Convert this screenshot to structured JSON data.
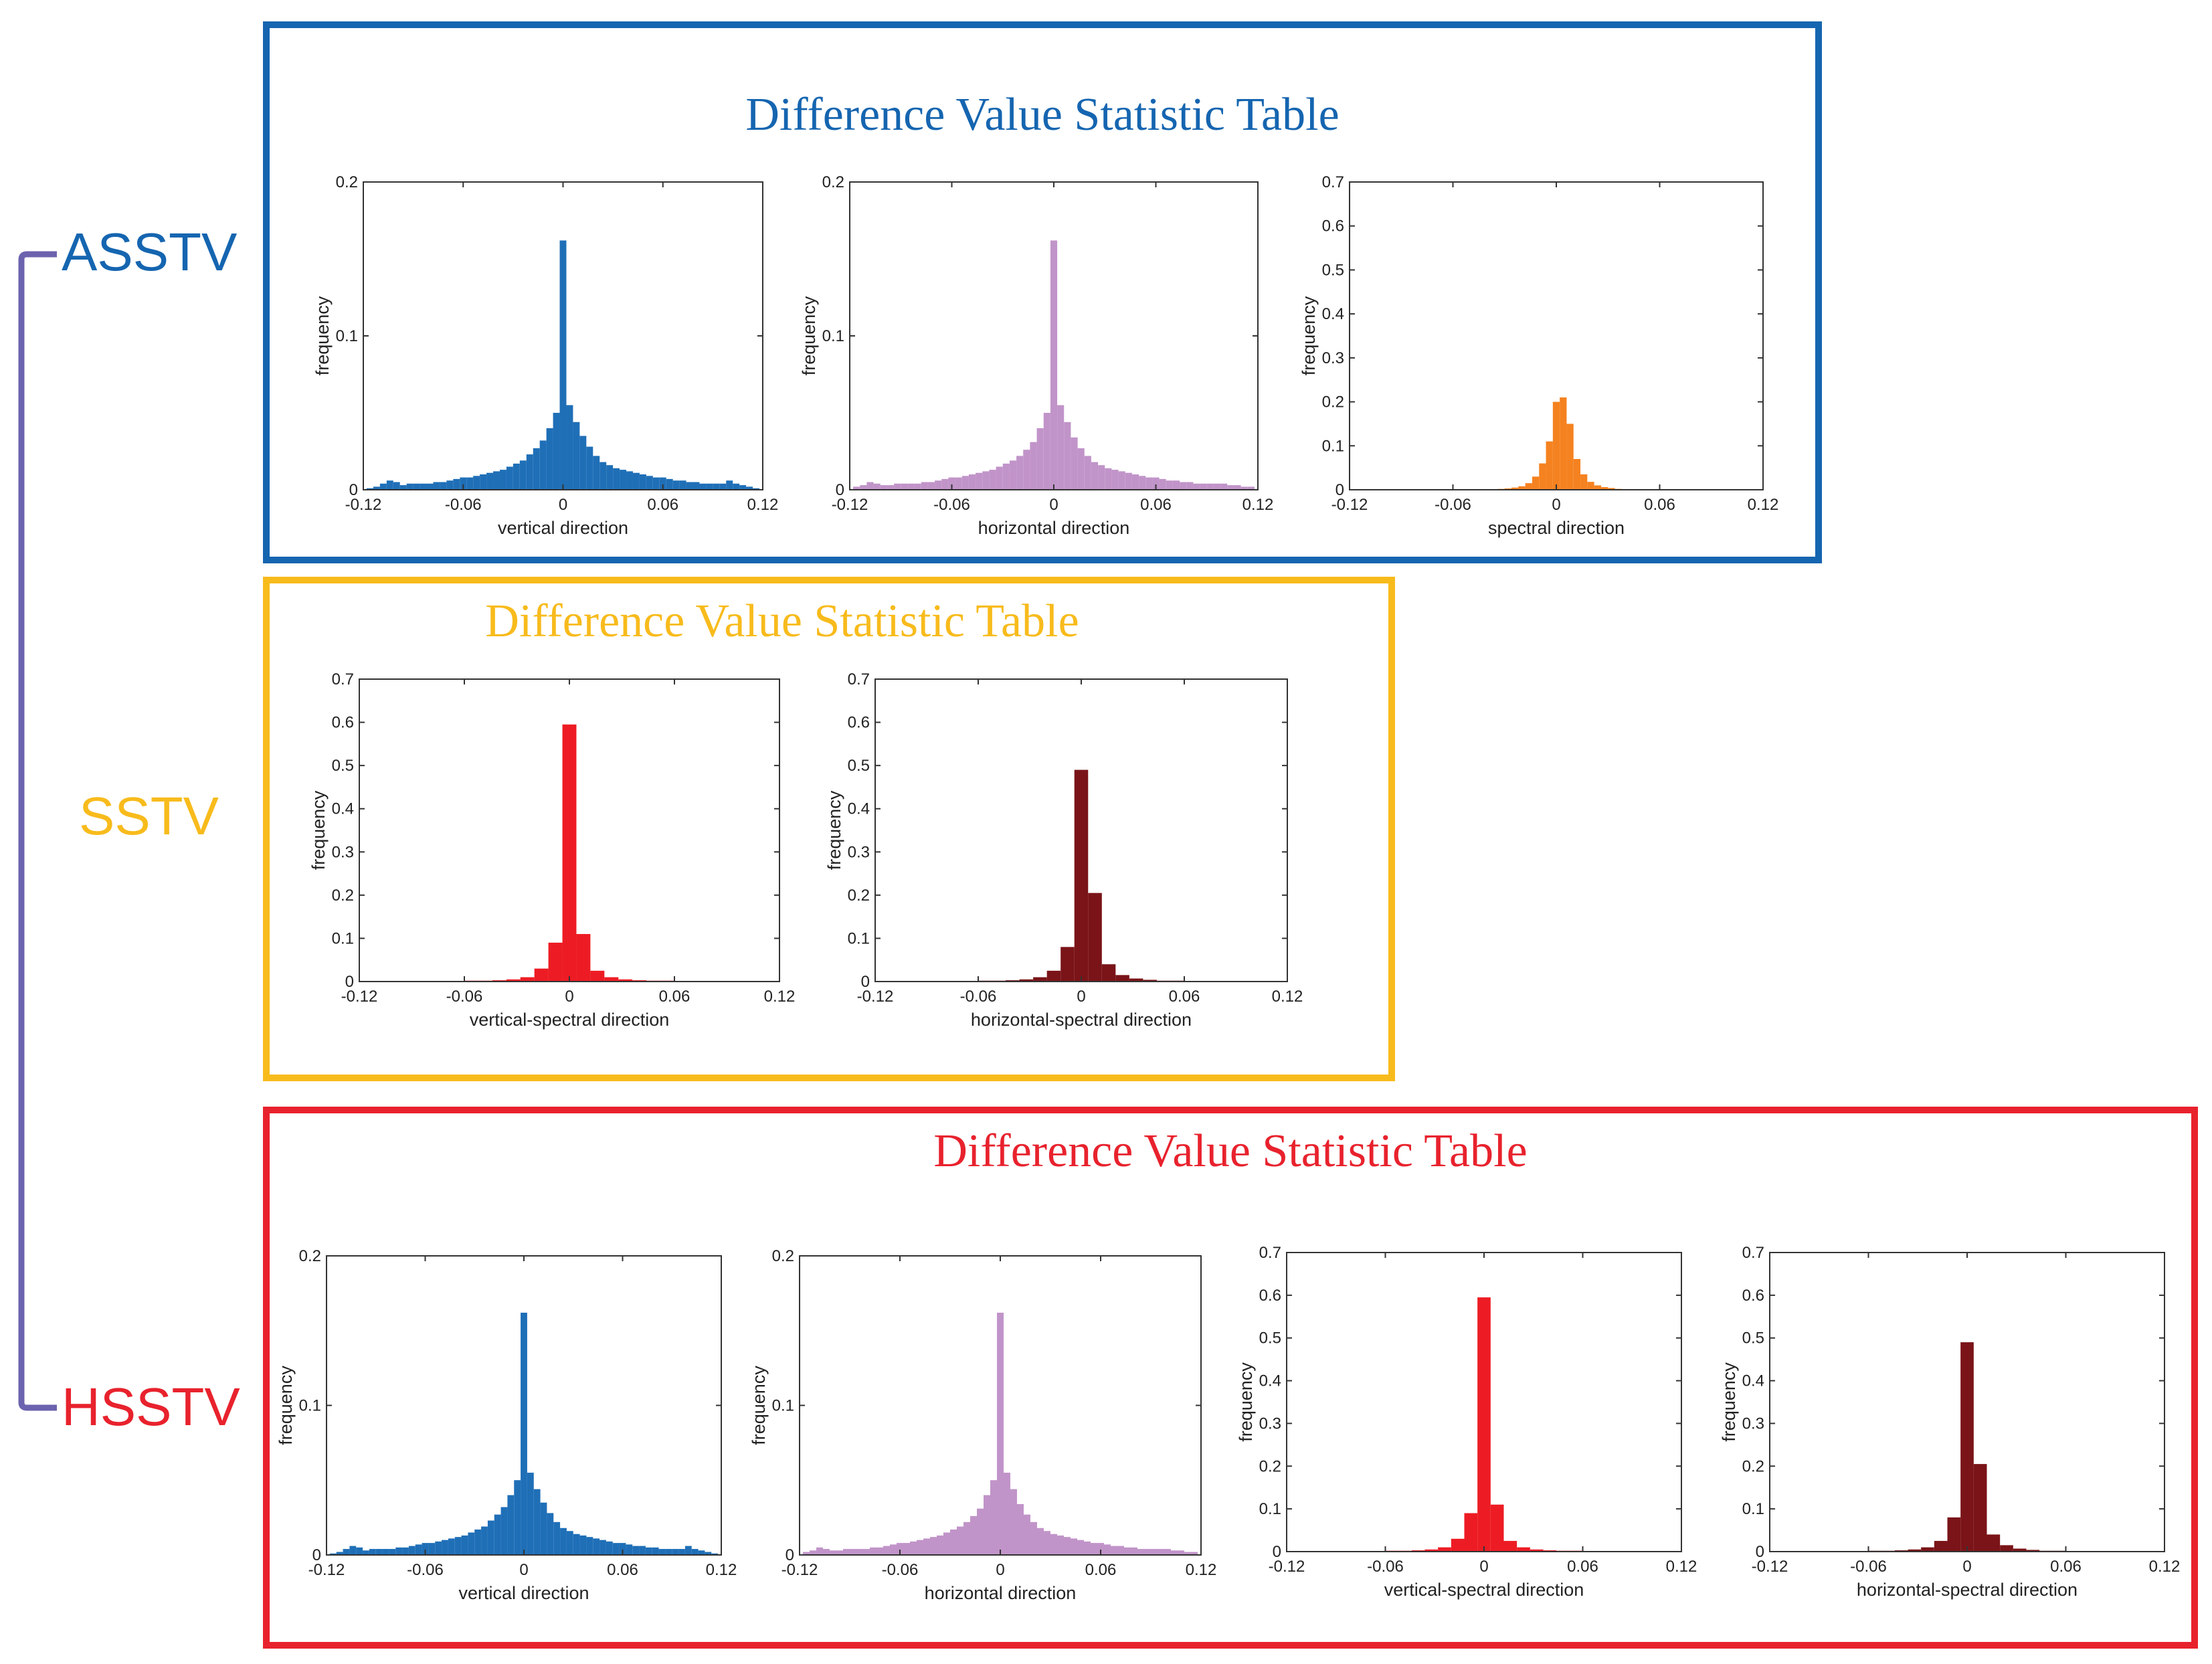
{
  "groups": [
    {
      "id": "asstv",
      "label": "ASSTV",
      "color": "#1565b0"
    },
    {
      "id": "sstv",
      "label": "SSTV",
      "color": "#f8bb1c"
    },
    {
      "id": "hsstv",
      "label": "HSSTV",
      "color": "#e8222d"
    }
  ],
  "bracket_color": "#6b63ae",
  "panels": {
    "asstv": {
      "title": "Difference Value Statistic Table",
      "color": "#1565b0"
    },
    "sstv": {
      "title": "Difference Value Statistic Table",
      "color": "#f8bb1c"
    },
    "hsstv": {
      "title": "Difference Value Statistic Table",
      "color": "#e8222d"
    }
  },
  "chart_data": [
    {
      "id": "asstv-vertical",
      "type": "bar",
      "color": "#1f6fb7",
      "bin_width": 0.004,
      "xlabel": "vertical direction",
      "ylabel": "frequency",
      "xlim": [
        -0.12,
        0.12
      ],
      "ylim": [
        0,
        0.2
      ],
      "xticks": [
        "-0.12",
        "-0.06",
        "0",
        "0.06",
        "0.12"
      ],
      "yticks": [
        "0",
        "0.1",
        "0.2"
      ],
      "x": [
        -0.116,
        -0.112,
        -0.108,
        -0.104,
        -0.1,
        -0.096,
        -0.092,
        -0.088,
        -0.084,
        -0.08,
        -0.076,
        -0.072,
        -0.068,
        -0.064,
        -0.06,
        -0.056,
        -0.052,
        -0.048,
        -0.044,
        -0.04,
        -0.036,
        -0.032,
        -0.028,
        -0.024,
        -0.02,
        -0.016,
        -0.012,
        -0.008,
        -0.004,
        0,
        0.004,
        0.008,
        0.012,
        0.016,
        0.02,
        0.024,
        0.028,
        0.032,
        0.036,
        0.04,
        0.044,
        0.048,
        0.052,
        0.056,
        0.06,
        0.064,
        0.068,
        0.072,
        0.076,
        0.08,
        0.084,
        0.088,
        0.092,
        0.096,
        0.1,
        0.104,
        0.108,
        0.112,
        0.116
      ],
      "values": [
        0.001,
        0.002,
        0.004,
        0.006,
        0.005,
        0.003,
        0.004,
        0.004,
        0.004,
        0.004,
        0.005,
        0.005,
        0.006,
        0.007,
        0.008,
        0.008,
        0.009,
        0.01,
        0.011,
        0.012,
        0.013,
        0.015,
        0.017,
        0.019,
        0.023,
        0.027,
        0.032,
        0.04,
        0.05,
        0.162,
        0.055,
        0.044,
        0.035,
        0.028,
        0.022,
        0.018,
        0.016,
        0.014,
        0.013,
        0.012,
        0.011,
        0.01,
        0.009,
        0.008,
        0.008,
        0.007,
        0.006,
        0.006,
        0.005,
        0.005,
        0.004,
        0.004,
        0.004,
        0.004,
        0.006,
        0.004,
        0.003,
        0.002,
        0.001
      ]
    },
    {
      "id": "asstv-horizontal",
      "type": "bar",
      "color": "#c194c9",
      "bin_width": 0.004,
      "xlabel": "horizontal direction",
      "ylabel": "frequency",
      "xlim": [
        -0.12,
        0.12
      ],
      "ylim": [
        0,
        0.2
      ],
      "xticks": [
        "-0.12",
        "-0.06",
        "0",
        "0.06",
        "0.12"
      ],
      "yticks": [
        "0",
        "0.1",
        "0.2"
      ],
      "x": [
        -0.116,
        -0.112,
        -0.108,
        -0.104,
        -0.1,
        -0.096,
        -0.092,
        -0.088,
        -0.084,
        -0.08,
        -0.076,
        -0.072,
        -0.068,
        -0.064,
        -0.06,
        -0.056,
        -0.052,
        -0.048,
        -0.044,
        -0.04,
        -0.036,
        -0.032,
        -0.028,
        -0.024,
        -0.02,
        -0.016,
        -0.012,
        -0.008,
        -0.004,
        0,
        0.004,
        0.008,
        0.012,
        0.016,
        0.02,
        0.024,
        0.028,
        0.032,
        0.036,
        0.04,
        0.044,
        0.048,
        0.052,
        0.056,
        0.06,
        0.064,
        0.068,
        0.072,
        0.076,
        0.08,
        0.084,
        0.088,
        0.092,
        0.096,
        0.1,
        0.104,
        0.108,
        0.112,
        0.116
      ],
      "values": [
        0.002,
        0.003,
        0.005,
        0.004,
        0.003,
        0.003,
        0.004,
        0.004,
        0.004,
        0.004,
        0.005,
        0.005,
        0.006,
        0.007,
        0.008,
        0.008,
        0.009,
        0.01,
        0.011,
        0.012,
        0.013,
        0.015,
        0.017,
        0.019,
        0.022,
        0.026,
        0.031,
        0.04,
        0.05,
        0.162,
        0.055,
        0.044,
        0.034,
        0.027,
        0.022,
        0.018,
        0.016,
        0.014,
        0.013,
        0.012,
        0.011,
        0.01,
        0.009,
        0.008,
        0.008,
        0.007,
        0.006,
        0.006,
        0.005,
        0.005,
        0.004,
        0.004,
        0.004,
        0.004,
        0.004,
        0.003,
        0.003,
        0.002,
        0.002
      ]
    },
    {
      "id": "asstv-spectral",
      "type": "bar",
      "color": "#f58220",
      "bin_width": 0.004,
      "xlabel": "spectral direction",
      "ylabel": "frequency",
      "xlim": [
        -0.12,
        0.12
      ],
      "ylim": [
        0,
        0.7
      ],
      "xticks": [
        "-0.12",
        "-0.06",
        "0",
        "0.06",
        "0.12"
      ],
      "yticks": [
        "0",
        "0.1",
        "0.2",
        "0.3",
        "0.4",
        "0.5",
        "0.6",
        "0.7"
      ],
      "x": [
        -0.04,
        -0.036,
        -0.032,
        -0.028,
        -0.024,
        -0.02,
        -0.016,
        -0.012,
        -0.008,
        -0.004,
        0,
        0.004,
        0.008,
        0.012,
        0.016,
        0.02,
        0.024,
        0.028,
        0.032,
        0.036,
        0.04
      ],
      "values": [
        0.001,
        0.001,
        0.002,
        0.003,
        0.005,
        0.008,
        0.015,
        0.03,
        0.06,
        0.11,
        0.2,
        0.21,
        0.15,
        0.07,
        0.035,
        0.018,
        0.01,
        0.006,
        0.004,
        0.002,
        0.001
      ]
    },
    {
      "id": "sstv-vertical-spectral",
      "type": "bar",
      "color": "#ed1c24",
      "bin_width": 0.008,
      "xlabel": "vertical-spectral direction",
      "ylabel": "frequency",
      "xlim": [
        -0.12,
        0.12
      ],
      "ylim": [
        0,
        0.7
      ],
      "xticks": [
        "-0.12",
        "-0.06",
        "0",
        "0.06",
        "0.12"
      ],
      "yticks": [
        "0",
        "0.1",
        "0.2",
        "0.3",
        "0.4",
        "0.5",
        "0.6",
        "0.7"
      ],
      "x": [
        -0.08,
        -0.072,
        -0.064,
        -0.056,
        -0.048,
        -0.04,
        -0.032,
        -0.024,
        -0.016,
        -0.008,
        0,
        0.008,
        0.016,
        0.024,
        0.032,
        0.04,
        0.048,
        0.056,
        0.064,
        0.072,
        0.08
      ],
      "values": [
        0.001,
        0.001,
        0.001,
        0.002,
        0.002,
        0.003,
        0.005,
        0.01,
        0.03,
        0.09,
        0.595,
        0.11,
        0.025,
        0.01,
        0.005,
        0.003,
        0.002,
        0.002,
        0.001,
        0.001,
        0.001
      ]
    },
    {
      "id": "sstv-horizontal-spectral",
      "type": "bar",
      "color": "#7a1418",
      "bin_width": 0.008,
      "xlabel": "horizontal-spectral direction",
      "ylabel": "frequency",
      "xlim": [
        -0.12,
        0.12
      ],
      "ylim": [
        0,
        0.7
      ],
      "xticks": [
        "-0.12",
        "-0.06",
        "0",
        "0.06",
        "0.12"
      ],
      "yticks": [
        "0",
        "0.1",
        "0.2",
        "0.3",
        "0.4",
        "0.5",
        "0.6",
        "0.7"
      ],
      "x": [
        -0.08,
        -0.072,
        -0.064,
        -0.056,
        -0.048,
        -0.04,
        -0.032,
        -0.024,
        -0.016,
        -0.008,
        0,
        0.008,
        0.016,
        0.024,
        0.032,
        0.04,
        0.048,
        0.056,
        0.064,
        0.072,
        0.08
      ],
      "values": [
        0.001,
        0.001,
        0.001,
        0.002,
        0.002,
        0.003,
        0.005,
        0.01,
        0.025,
        0.08,
        0.49,
        0.205,
        0.04,
        0.015,
        0.007,
        0.004,
        0.002,
        0.002,
        0.001,
        0.001,
        0.001
      ]
    },
    {
      "id": "hsstv-vertical",
      "type": "bar",
      "color": "#1f6fb7",
      "bin_width": 0.004,
      "xlabel": "vertical direction",
      "ylabel": "frequency",
      "xlim": [
        -0.12,
        0.12
      ],
      "ylim": [
        0,
        0.2
      ],
      "xticks": [
        "-0.12",
        "-0.06",
        "0",
        "0.06",
        "0.12"
      ],
      "yticks": [
        "0",
        "0.1",
        "0.2"
      ],
      "x": [
        -0.116,
        -0.112,
        -0.108,
        -0.104,
        -0.1,
        -0.096,
        -0.092,
        -0.088,
        -0.084,
        -0.08,
        -0.076,
        -0.072,
        -0.068,
        -0.064,
        -0.06,
        -0.056,
        -0.052,
        -0.048,
        -0.044,
        -0.04,
        -0.036,
        -0.032,
        -0.028,
        -0.024,
        -0.02,
        -0.016,
        -0.012,
        -0.008,
        -0.004,
        0,
        0.004,
        0.008,
        0.012,
        0.016,
        0.02,
        0.024,
        0.028,
        0.032,
        0.036,
        0.04,
        0.044,
        0.048,
        0.052,
        0.056,
        0.06,
        0.064,
        0.068,
        0.072,
        0.076,
        0.08,
        0.084,
        0.088,
        0.092,
        0.096,
        0.1,
        0.104,
        0.108,
        0.112,
        0.116
      ],
      "values": [
        0.001,
        0.002,
        0.004,
        0.006,
        0.005,
        0.003,
        0.004,
        0.004,
        0.004,
        0.004,
        0.005,
        0.005,
        0.006,
        0.007,
        0.008,
        0.008,
        0.009,
        0.01,
        0.011,
        0.012,
        0.013,
        0.015,
        0.017,
        0.019,
        0.023,
        0.027,
        0.032,
        0.04,
        0.05,
        0.162,
        0.055,
        0.044,
        0.035,
        0.028,
        0.022,
        0.018,
        0.016,
        0.014,
        0.013,
        0.012,
        0.011,
        0.01,
        0.009,
        0.008,
        0.008,
        0.007,
        0.006,
        0.006,
        0.005,
        0.005,
        0.004,
        0.004,
        0.004,
        0.004,
        0.006,
        0.004,
        0.003,
        0.002,
        0.001
      ]
    },
    {
      "id": "hsstv-horizontal",
      "type": "bar",
      "color": "#c194c9",
      "bin_width": 0.004,
      "xlabel": "horizontal direction",
      "ylabel": "frequency",
      "xlim": [
        -0.12,
        0.12
      ],
      "ylim": [
        0,
        0.2
      ],
      "xticks": [
        "-0.12",
        "-0.06",
        "0",
        "0.06",
        "0.12"
      ],
      "yticks": [
        "0",
        "0.1",
        "0.2"
      ],
      "x": [
        -0.116,
        -0.112,
        -0.108,
        -0.104,
        -0.1,
        -0.096,
        -0.092,
        -0.088,
        -0.084,
        -0.08,
        -0.076,
        -0.072,
        -0.068,
        -0.064,
        -0.06,
        -0.056,
        -0.052,
        -0.048,
        -0.044,
        -0.04,
        -0.036,
        -0.032,
        -0.028,
        -0.024,
        -0.02,
        -0.016,
        -0.012,
        -0.008,
        -0.004,
        0,
        0.004,
        0.008,
        0.012,
        0.016,
        0.02,
        0.024,
        0.028,
        0.032,
        0.036,
        0.04,
        0.044,
        0.048,
        0.052,
        0.056,
        0.06,
        0.064,
        0.068,
        0.072,
        0.076,
        0.08,
        0.084,
        0.088,
        0.092,
        0.096,
        0.1,
        0.104,
        0.108,
        0.112,
        0.116
      ],
      "values": [
        0.002,
        0.003,
        0.005,
        0.004,
        0.003,
        0.003,
        0.004,
        0.004,
        0.004,
        0.004,
        0.005,
        0.005,
        0.006,
        0.007,
        0.008,
        0.008,
        0.009,
        0.01,
        0.011,
        0.012,
        0.013,
        0.015,
        0.017,
        0.019,
        0.022,
        0.026,
        0.031,
        0.04,
        0.05,
        0.162,
        0.055,
        0.044,
        0.034,
        0.027,
        0.022,
        0.018,
        0.016,
        0.014,
        0.013,
        0.012,
        0.011,
        0.01,
        0.009,
        0.008,
        0.008,
        0.007,
        0.006,
        0.006,
        0.005,
        0.005,
        0.004,
        0.004,
        0.004,
        0.004,
        0.004,
        0.003,
        0.003,
        0.002,
        0.002
      ]
    },
    {
      "id": "hsstv-vertical-spectral",
      "type": "bar",
      "color": "#ed1c24",
      "bin_width": 0.008,
      "xlabel": "vertical-spectral direction",
      "ylabel": "frequency",
      "xlim": [
        -0.12,
        0.12
      ],
      "ylim": [
        0,
        0.7
      ],
      "xticks": [
        "-0.12",
        "-0.06",
        "0",
        "0.06",
        "0.12"
      ],
      "yticks": [
        "0",
        "0.1",
        "0.2",
        "0.3",
        "0.4",
        "0.5",
        "0.6",
        "0.7"
      ],
      "x": [
        -0.08,
        -0.072,
        -0.064,
        -0.056,
        -0.048,
        -0.04,
        -0.032,
        -0.024,
        -0.016,
        -0.008,
        0,
        0.008,
        0.016,
        0.024,
        0.032,
        0.04,
        0.048,
        0.056,
        0.064,
        0.072,
        0.08
      ],
      "values": [
        0.001,
        0.001,
        0.001,
        0.002,
        0.002,
        0.003,
        0.005,
        0.01,
        0.03,
        0.09,
        0.595,
        0.11,
        0.025,
        0.01,
        0.005,
        0.003,
        0.002,
        0.002,
        0.001,
        0.001,
        0.001
      ]
    },
    {
      "id": "hsstv-horizontal-spectral",
      "type": "bar",
      "color": "#7a1418",
      "bin_width": 0.008,
      "xlabel": "horizontal-spectral direction",
      "ylabel": "frequency",
      "xlim": [
        -0.12,
        0.12
      ],
      "ylim": [
        0,
        0.7
      ],
      "xticks": [
        "-0.12",
        "-0.06",
        "0",
        "0.06",
        "0.12"
      ],
      "yticks": [
        "0",
        "0.1",
        "0.2",
        "0.3",
        "0.4",
        "0.5",
        "0.6",
        "0.7"
      ],
      "x": [
        -0.08,
        -0.072,
        -0.064,
        -0.056,
        -0.048,
        -0.04,
        -0.032,
        -0.024,
        -0.016,
        -0.008,
        0,
        0.008,
        0.016,
        0.024,
        0.032,
        0.04,
        0.048,
        0.056,
        0.064,
        0.072,
        0.08
      ],
      "values": [
        0.001,
        0.001,
        0.001,
        0.002,
        0.002,
        0.003,
        0.005,
        0.01,
        0.025,
        0.08,
        0.49,
        0.205,
        0.04,
        0.015,
        0.007,
        0.004,
        0.002,
        0.002,
        0.001,
        0.001,
        0.001
      ]
    }
  ]
}
